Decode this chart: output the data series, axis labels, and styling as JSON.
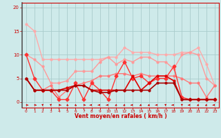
{
  "background_color": "#ceeaea",
  "grid_color": "#aacccc",
  "xlabel": "Vent moyen/en rafales ( km/h )",
  "xlabel_color": "#cc0000",
  "tick_color": "#cc0000",
  "xlim": [
    -0.5,
    23.5
  ],
  "ylim": [
    -1.2,
    21
  ],
  "yticks": [
    0,
    5,
    10,
    15,
    20
  ],
  "xticks": [
    0,
    1,
    2,
    3,
    4,
    5,
    6,
    7,
    8,
    9,
    10,
    11,
    12,
    13,
    14,
    15,
    16,
    17,
    18,
    19,
    20,
    21,
    22,
    23
  ],
  "series": [
    {
      "x": [
        0,
        1,
        2,
        3,
        4,
        5,
        6,
        7,
        8,
        9,
        10,
        11,
        12,
        13,
        14,
        15,
        16,
        17,
        18,
        19,
        20,
        21,
        22,
        23
      ],
      "y": [
        16.5,
        15.0,
        9.0,
        9.0,
        9.0,
        9.0,
        9.0,
        9.0,
        9.0,
        9.0,
        9.5,
        9.5,
        11.5,
        10.5,
        10.5,
        10.5,
        10.0,
        10.0,
        10.0,
        10.5,
        10.5,
        11.5,
        8.0,
        3.5
      ],
      "color": "#ffaaaa",
      "lw": 1.0,
      "marker": "o",
      "ms": 2.0
    },
    {
      "x": [
        0,
        1,
        2,
        3,
        4,
        5,
        6,
        7,
        8,
        9,
        10,
        11,
        12,
        13,
        14,
        15,
        16,
        17,
        18,
        19,
        20,
        21,
        22,
        23
      ],
      "y": [
        10.0,
        9.0,
        7.5,
        4.0,
        4.0,
        4.5,
        6.5,
        6.5,
        6.5,
        8.5,
        9.5,
        8.0,
        9.0,
        8.5,
        9.5,
        9.5,
        8.5,
        8.5,
        7.0,
        10.0,
        10.5,
        10.0,
        5.0,
        3.5
      ],
      "color": "#ff9999",
      "lw": 1.0,
      "marker": "o",
      "ms": 2.0
    },
    {
      "x": [
        0,
        1,
        2,
        3,
        4,
        5,
        6,
        7,
        8,
        9,
        10,
        11,
        12,
        13,
        14,
        15,
        16,
        17,
        18,
        19,
        20,
        21,
        22,
        23
      ],
      "y": [
        5.0,
        2.5,
        2.5,
        3.5,
        1.0,
        2.5,
        3.5,
        4.0,
        4.5,
        5.5,
        5.5,
        6.0,
        6.0,
        5.5,
        6.0,
        5.5,
        5.5,
        5.5,
        5.5,
        5.0,
        4.0,
        4.0,
        1.0,
        3.5
      ],
      "color": "#ff7777",
      "lw": 1.0,
      "marker": "o",
      "ms": 2.0
    },
    {
      "x": [
        0,
        1,
        2,
        3,
        4,
        5,
        6,
        7,
        8,
        9,
        10,
        11,
        12,
        13,
        14,
        15,
        16,
        17,
        18,
        19,
        20,
        21,
        22,
        23
      ],
      "y": [
        10.0,
        5.0,
        2.5,
        2.5,
        0.5,
        0.5,
        4.0,
        0.5,
        4.0,
        2.5,
        0.5,
        5.5,
        8.5,
        5.0,
        5.5,
        4.0,
        5.0,
        5.0,
        7.5,
        1.0,
        0.5,
        0.5,
        0.5,
        0.5
      ],
      "color": "#ff3333",
      "lw": 1.0,
      "marker": "D",
      "ms": 2.5
    },
    {
      "x": [
        0,
        1,
        2,
        3,
        4,
        5,
        6,
        7,
        8,
        9,
        10,
        11,
        12,
        13,
        14,
        15,
        16,
        17,
        18,
        19,
        20,
        21,
        22,
        23
      ],
      "y": [
        5.0,
        2.5,
        2.5,
        2.5,
        2.5,
        3.0,
        3.5,
        3.5,
        2.5,
        2.5,
        2.5,
        2.5,
        2.5,
        5.5,
        2.5,
        4.0,
        5.5,
        5.5,
        4.5,
        0.5,
        0.5,
        0.5,
        0.5,
        0.5
      ],
      "color": "#dd0000",
      "lw": 1.2,
      "marker": "o",
      "ms": 2.0
    },
    {
      "x": [
        0,
        1,
        2,
        3,
        4,
        5,
        6,
        7,
        8,
        9,
        10,
        11,
        12,
        13,
        14,
        15,
        16,
        17,
        18,
        19,
        20,
        21,
        22,
        23
      ],
      "y": [
        5.0,
        2.5,
        2.5,
        2.5,
        2.5,
        2.5,
        3.5,
        3.5,
        2.5,
        2.0,
        2.0,
        2.5,
        2.5,
        2.5,
        2.5,
        2.5,
        4.0,
        4.0,
        4.0,
        0.5,
        0.5,
        0.5,
        0.5,
        0.5
      ],
      "color": "#aa0000",
      "lw": 1.2,
      "marker": "o",
      "ms": 2.0
    }
  ]
}
